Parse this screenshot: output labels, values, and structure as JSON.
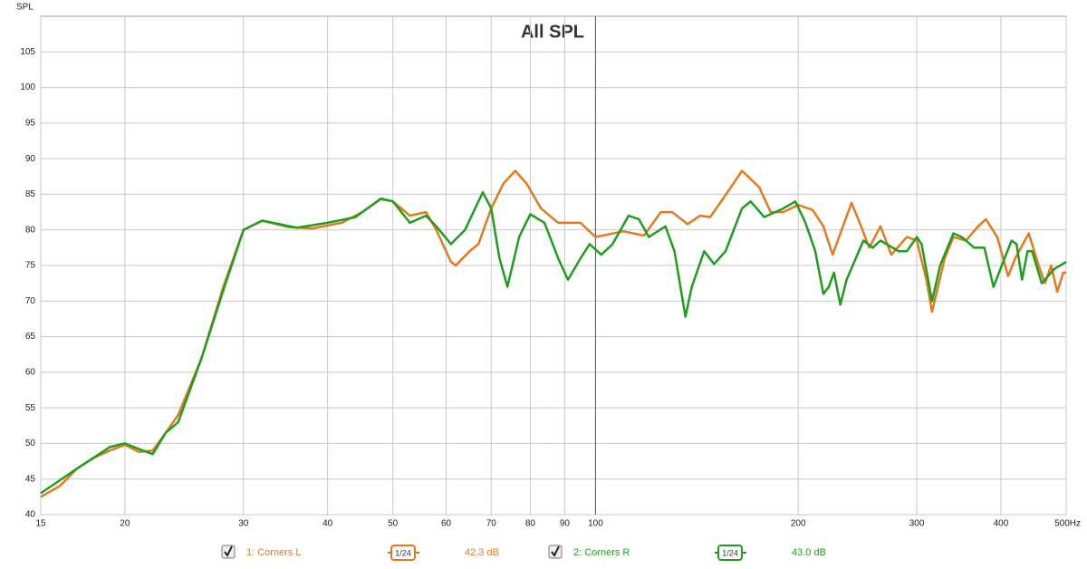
{
  "chart_data": {
    "type": "line",
    "title": "All SPL",
    "y_label": "SPL",
    "xscale": "log",
    "grid": true,
    "xlim": [
      15,
      500
    ],
    "ylim": [
      40,
      110
    ],
    "xticks": [
      15,
      20,
      30,
      40,
      50,
      60,
      70,
      80,
      90,
      100,
      200,
      300,
      400,
      {
        "value": 500,
        "label": "500Hz"
      }
    ],
    "yticks": [
      40,
      45,
      50,
      55,
      60,
      65,
      70,
      75,
      80,
      85,
      90,
      95,
      100,
      105
    ],
    "legend_position": "bottom",
    "series": [
      {
        "name": "1: Corners L",
        "color": "#e07b1f",
        "smoothing": "1/24",
        "level": "42.3 dB",
        "x": [
          15,
          16,
          17,
          18,
          19,
          20,
          21,
          22,
          23,
          24,
          26,
          28,
          30,
          32,
          35,
          38,
          42,
          45,
          48,
          50,
          53,
          56,
          58,
          61,
          62,
          65,
          67,
          70,
          73,
          76,
          79,
          83,
          88,
          92,
          95,
          100,
          110,
          118,
          125,
          130,
          137,
          143,
          148,
          155,
          165,
          175,
          182,
          190,
          200,
          210,
          218,
          225,
          232,
          240,
          248,
          255,
          265,
          275,
          290,
          300,
          310,
          316,
          330,
          340,
          355,
          370,
          380,
          395,
          410,
          420,
          440,
          455,
          465,
          475,
          485,
          495,
          500
        ],
        "values": [
          42.5,
          44,
          46.5,
          48,
          49,
          49.8,
          48.8,
          49,
          51.5,
          54,
          62,
          72,
          80,
          81.3,
          80.4,
          80.2,
          81,
          82.5,
          84.3,
          84,
          82,
          82.5,
          80,
          75.5,
          75,
          77,
          78,
          83,
          86.5,
          88.3,
          86.5,
          83,
          81,
          81,
          81,
          79,
          79.8,
          79.2,
          82.5,
          82.5,
          80.8,
          82,
          81.8,
          84.5,
          88.3,
          86,
          82.5,
          82.5,
          83.5,
          82.8,
          80.5,
          76.5,
          80,
          83.8,
          80.5,
          77.5,
          80.5,
          76.5,
          79,
          78.5,
          73,
          68.5,
          76,
          79,
          78.5,
          80.5,
          81.5,
          79,
          73.5,
          76,
          79.5,
          75,
          72.5,
          75,
          71.3,
          74,
          74
        ]
      },
      {
        "name": "2: Corners R",
        "color": "#1e9e1e",
        "smoothing": "1/24",
        "level": "43.0 dB",
        "x": [
          15,
          17,
          19,
          20,
          21,
          22,
          23,
          24,
          26,
          28,
          30,
          32,
          36,
          40,
          44,
          48,
          50,
          53,
          56,
          58,
          61,
          64,
          68,
          70,
          72,
          74,
          77,
          80,
          84,
          88,
          91,
          95,
          98,
          102,
          106,
          112,
          116,
          120,
          127,
          131,
          136,
          139,
          145,
          150,
          156,
          165,
          170,
          178,
          190,
          198,
          205,
          212,
          218,
          222,
          226,
          231,
          236,
          250,
          258,
          265,
          282,
          290,
          300,
          305,
          316,
          325,
          340,
          350,
          365,
          378,
          390,
          405,
          415,
          422,
          430,
          438,
          445,
          460,
          480,
          500
        ],
        "values": [
          43,
          46.5,
          49.5,
          50,
          49.2,
          48.5,
          51.5,
          53,
          62,
          71.5,
          80,
          81.3,
          80.3,
          81,
          81.8,
          84.4,
          84,
          81,
          82,
          80.5,
          78,
          80,
          85.3,
          83,
          76,
          72,
          79,
          82.2,
          81,
          76,
          73,
          76,
          78,
          76.5,
          78,
          82,
          81.5,
          79,
          80.5,
          77,
          67.8,
          72,
          77,
          75.2,
          77,
          83,
          84,
          81.8,
          83,
          84,
          81,
          77,
          71,
          72,
          74,
          69.5,
          73,
          78.5,
          77.5,
          78.5,
          77,
          77,
          79,
          78,
          70,
          75,
          79.5,
          79,
          77.5,
          77.5,
          72,
          76,
          78.5,
          78,
          73,
          77,
          77,
          72.5,
          74.5,
          75.5
        ]
      }
    ]
  }
}
